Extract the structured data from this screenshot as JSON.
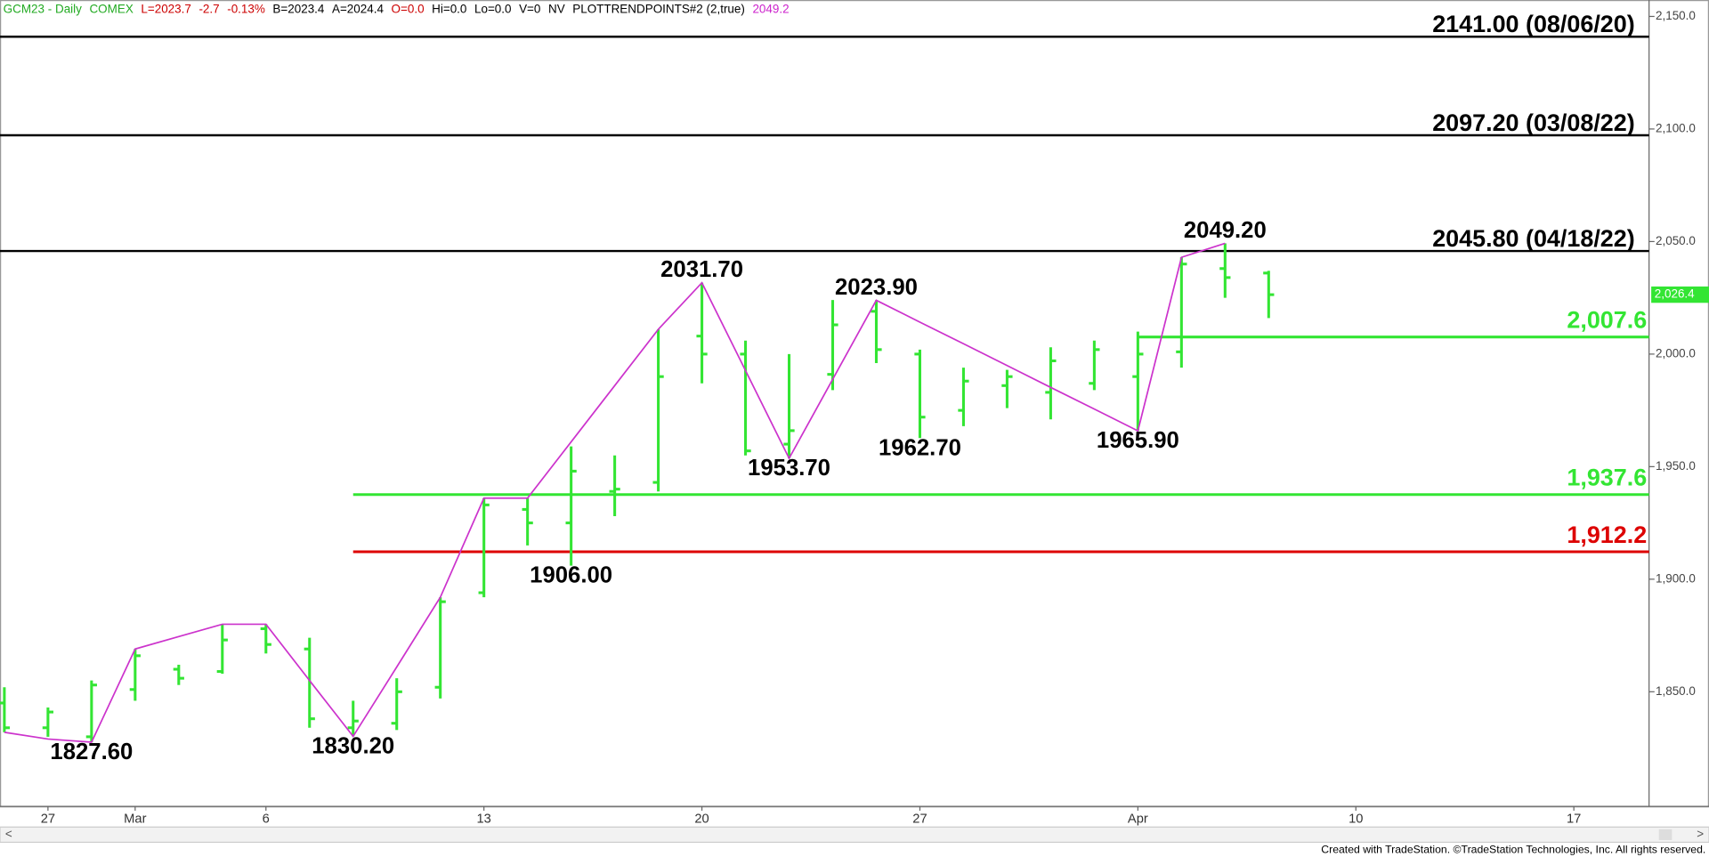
{
  "chart_data": {
    "type": "ohlc",
    "header": [
      {
        "text": "GCM23 - Daily",
        "color": "#22aa22"
      },
      {
        "text": "COMEX",
        "color": "#22aa22"
      },
      {
        "text": "L=2023.7",
        "color": "#cc0000"
      },
      {
        "text": "-2.7",
        "color": "#cc0000"
      },
      {
        "text": "-0.13%",
        "color": "#cc0000"
      },
      {
        "text": "B=2023.4",
        "color": "#000000"
      },
      {
        "text": "A=2024.4",
        "color": "#000000"
      },
      {
        "text": "O=0.0",
        "color": "#cc0000"
      },
      {
        "text": "Hi=0.0",
        "color": "#000000"
      },
      {
        "text": "Lo=0.0",
        "color": "#000000"
      },
      {
        "text": "V=0",
        "color": "#000000"
      },
      {
        "text": "NV",
        "color": "#000000"
      },
      {
        "text": "PLOTTRENDPOINTS#2 (2,true)",
        "color": "#000000"
      },
      {
        "text": "2049.2",
        "color": "#cc22cc"
      }
    ],
    "categories": [
      null,
      "27",
      null,
      "Mar",
      null,
      null,
      "6",
      null,
      null,
      null,
      null,
      "13",
      null,
      null,
      null,
      null,
      "20",
      null,
      null,
      null,
      null,
      "27",
      null,
      null,
      null,
      null,
      "Apr",
      null,
      null,
      null,
      null,
      "10",
      null,
      null,
      null,
      null,
      "17",
      null
    ],
    "open": [
      1845,
      1834,
      1830,
      1851,
      1860,
      1859,
      1878,
      1869,
      1834,
      1836,
      1852,
      1894,
      1931,
      1925,
      1939,
      1943,
      2008,
      2000,
      1960,
      1991,
      2019,
      2000,
      1975,
      1986,
      1983,
      1987,
      1990,
      2001,
      2038,
      2036,
      null,
      null,
      null,
      null,
      null,
      null,
      null,
      null
    ],
    "high": [
      1852,
      1843,
      1855,
      1869,
      1862,
      1880,
      1880,
      1874,
      1846,
      1856,
      1892,
      1936,
      1936,
      1959,
      1955,
      2011,
      2031.7,
      2006,
      2000,
      2024,
      2023.9,
      2002,
      1994,
      1993,
      2003,
      2006,
      2010,
      2043,
      2049.2,
      2037,
      null,
      null,
      null,
      null,
      null,
      null,
      null,
      null
    ],
    "low": [
      1832,
      1830,
      1827.6,
      1846,
      1853,
      1858,
      1867,
      1834,
      1830.2,
      1833,
      1847,
      1892,
      1915,
      1906,
      1928,
      1939,
      1987,
      1955,
      1953.7,
      1984,
      1996,
      1962.7,
      1968,
      1976,
      1971,
      1984,
      1965.9,
      1994,
      2025,
      2016,
      null,
      null,
      null,
      null,
      null,
      null,
      null,
      null
    ],
    "close": [
      1834,
      1841,
      1853,
      1866,
      1856,
      1873,
      1871,
      1838,
      1837,
      1850,
      1890,
      1933,
      1925,
      1948,
      1940,
      1990,
      2000,
      1957,
      1966,
      2013,
      2002,
      1972,
      1988,
      1990,
      1997,
      2002,
      2000,
      2040,
      2034,
      2026.4,
      null,
      null,
      null,
      null,
      null,
      null,
      null,
      null
    ],
    "color": "#33e533",
    "trend": {
      "color": "#cc33cc",
      "values": [
        1832,
        1829,
        1827.6,
        1869,
        1874.5,
        1880,
        1880,
        1855,
        1830.2,
        1861,
        1892,
        1936,
        1936,
        1961,
        1986,
        2011,
        2031.7,
        1992.7,
        1953.7,
        1988.8,
        2023.9,
        2014.2,
        2004.6,
        1994.9,
        1985.2,
        1975.6,
        1965.9,
        2043,
        2049.2,
        null,
        null,
        null,
        null,
        null,
        null,
        null,
        null,
        null
      ]
    },
    "levels": [
      {
        "value": 2141,
        "label": "2141.00 (08/06/20)",
        "color": "#000000"
      },
      {
        "value": 2097.2,
        "label": "2097.20 (03/08/22)",
        "color": "#000000"
      },
      {
        "value": 2045.8,
        "label": "2045.80 (04/18/22)",
        "color": "#000000"
      },
      {
        "value": 2007.6,
        "label": "2,007.6",
        "color": "#33e533"
      },
      {
        "value": 1937.6,
        "label": "1,937.6",
        "color": "#33e533"
      },
      {
        "value": 1912.2,
        "label": "1,912.2",
        "color": "#dd0000"
      }
    ],
    "annotations": [
      {
        "value": 1827.6,
        "label": "1827.60"
      },
      {
        "value": 1830.2,
        "label": "1830.20"
      },
      {
        "value": 1906,
        "label": "1906.00"
      },
      {
        "value": 2031.7,
        "label": "2031.70"
      },
      {
        "value": 1953.7,
        "label": "1953.70"
      },
      {
        "value": 2023.9,
        "label": "2023.90"
      },
      {
        "value": 1962.7,
        "label": "1962.70"
      },
      {
        "value": 1965.9,
        "label": "1965.90"
      },
      {
        "value": 2049.2,
        "label": "2049.20"
      }
    ],
    "last_price": {
      "value": 2026.4,
      "label": "2,026.4"
    },
    "ylim": [
      1799.1,
      2157.3
    ],
    "yticks": [
      {
        "value": 1850,
        "label": "1,850.0"
      },
      {
        "value": 1900,
        "label": "1,900.0"
      },
      {
        "value": 1950,
        "label": "1,950.0"
      },
      {
        "value": 2000,
        "label": "2,000.0"
      },
      {
        "value": 2050,
        "label": "2,050.0"
      },
      {
        "value": 2100,
        "label": "2,100.0"
      },
      {
        "value": 2150,
        "label": "2,150.0"
      }
    ],
    "footer": "Created with TradeStation. ©TradeStation Technologies, Inc. All rights reserved."
  }
}
